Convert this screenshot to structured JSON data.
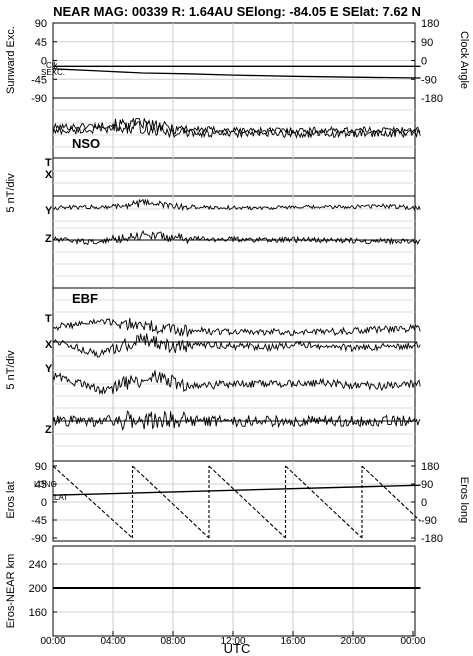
{
  "header": {
    "title": "NEAR MAG: 00339  R: 1.64AU  SElong:  -84.05 E  SElat:    7.62 N"
  },
  "chart_data": [
    {
      "type": "line",
      "ylabel_left": "Sunward Exc.",
      "ylabel_right": "Clock Angle",
      "yticks_left": [
        "90",
        "45",
        "0",
        "-45",
        "-90"
      ],
      "yticks_right": [
        "180",
        "90",
        "0",
        "-90",
        "-180"
      ],
      "ylim": [
        -90,
        90
      ],
      "annotations": [
        "Clk",
        "SEXC."
      ],
      "series": [
        {
          "name": "Clk",
          "x_hours": [
            0,
            6,
            12,
            18,
            24.5
          ],
          "values": [
            -14,
            -14,
            -14,
            -14,
            -14
          ]
        },
        {
          "name": "SEXC.",
          "x_hours": [
            0,
            3,
            6,
            9,
            12,
            16,
            20,
            24.5
          ],
          "values": [
            -20,
            -25,
            -30,
            -32,
            -35,
            -38,
            -40,
            -42
          ]
        }
      ]
    },
    {
      "type": "line",
      "panel_label": "NSO",
      "ylabel": "5 nT/div",
      "trace_labels": [
        "T",
        "X",
        "Y",
        "Z"
      ],
      "series": [
        {
          "name": "T",
          "noise": 0.55,
          "x_hours": [
            0,
            3,
            6,
            7,
            8.5,
            12,
            18,
            24.5
          ],
          "values": [
            5.1,
            5.4,
            5.8,
            5.2,
            4.9,
            4.6,
            4.6,
            4.7
          ]
        },
        {
          "name": "X",
          "noise": 0.6,
          "x_hours": [
            0,
            3,
            6,
            7,
            8.5,
            12,
            18,
            24.5
          ],
          "values": [
            4.4,
            4.7,
            5.1,
            4.5,
            4.2,
            4.0,
            4.0,
            4.1
          ]
        },
        {
          "name": "Y",
          "noise": 0.35,
          "x_hours": [
            0,
            4,
            6.5,
            8,
            12,
            18,
            22,
            24.5
          ],
          "values": [
            0.2,
            0.4,
            1.1,
            0.4,
            0.2,
            0.3,
            0.5,
            0.2
          ]
        },
        {
          "name": "Z",
          "noise": 0.45,
          "x_hours": [
            0,
            3,
            5,
            6.5,
            7.5,
            9,
            12,
            18,
            24.5
          ],
          "values": [
            0.1,
            -0.4,
            0.6,
            0.9,
            0.5,
            0.2,
            0.1,
            0.0,
            -0.3
          ]
        }
      ]
    },
    {
      "type": "line",
      "panel_label": "EBF",
      "ylabel": "5 nT/div",
      "trace_labels": [
        "T",
        "X",
        "Y",
        "Z"
      ],
      "series": [
        {
          "name": "T",
          "noise": 0.45,
          "x_hours": [
            0,
            3,
            6,
            8,
            12,
            18,
            24.5
          ],
          "values": [
            0.6,
            1.3,
            0.9,
            0.2,
            0.0,
            0.0,
            0.5
          ]
        },
        {
          "name": "X",
          "noise": 0.45,
          "x_hours": [
            0,
            3,
            6,
            8,
            11,
            14,
            17,
            20,
            24.5
          ],
          "values": [
            0.3,
            -1.6,
            0.4,
            -0.6,
            -0.4,
            -0.7,
            -0.3,
            -0.8,
            -0.4
          ]
        },
        {
          "name": "Y",
          "noise": 0.5,
          "x_hours": [
            0,
            2,
            3.5,
            5,
            7,
            9,
            12,
            18,
            22,
            24.5
          ],
          "values": [
            0.6,
            -0.6,
            -1.4,
            -0.3,
            0.4,
            -0.8,
            -0.5,
            -0.4,
            -0.8,
            -0.4
          ]
        },
        {
          "name": "Z",
          "noise": 0.7,
          "x_hours": [
            0,
            6,
            12,
            18,
            24.5
          ],
          "values": [
            0.0,
            0.0,
            0.0,
            0.0,
            0.0
          ]
        }
      ]
    },
    {
      "type": "line",
      "ylabel_left": "Eros lat",
      "ylabel_right": "Eros long",
      "yticks_left": [
        "90",
        "45",
        "0",
        "-45",
        "-90"
      ],
      "yticks_right": [
        "180",
        "90",
        "0",
        "-90",
        "-180"
      ],
      "ylim": [
        -90,
        90
      ],
      "annotations": [
        "LONG",
        "LAT"
      ],
      "series": [
        {
          "name": "LAT",
          "x_hours": [
            0,
            24.5
          ],
          "values": [
            17,
            42
          ]
        },
        {
          "name": "LONG",
          "x_hours": [
            0,
            5.3,
            5.3,
            10.4,
            10.4,
            15.5,
            15.5,
            20.6,
            20.6,
            24.5
          ],
          "values": [
            180,
            -180,
            180,
            -180,
            180,
            -180,
            180,
            -180,
            180,
            -96
          ]
        }
      ]
    },
    {
      "type": "line",
      "ylabel": "Eros-NEAR km",
      "yticks": [
        "240",
        "200",
        "160"
      ],
      "ylim": [
        120,
        270
      ],
      "series": [
        {
          "name": "range",
          "x_hours": [
            0,
            24.5
          ],
          "values": [
            200,
            200
          ]
        }
      ]
    }
  ],
  "x_axis": {
    "label": "UTC",
    "tick_labels": [
      "00:00",
      "04:00",
      "08:00",
      "12:00",
      "16:00",
      "20:00",
      "00:00"
    ],
    "tick_hours": [
      0,
      4,
      8,
      12,
      16,
      20,
      24
    ]
  }
}
